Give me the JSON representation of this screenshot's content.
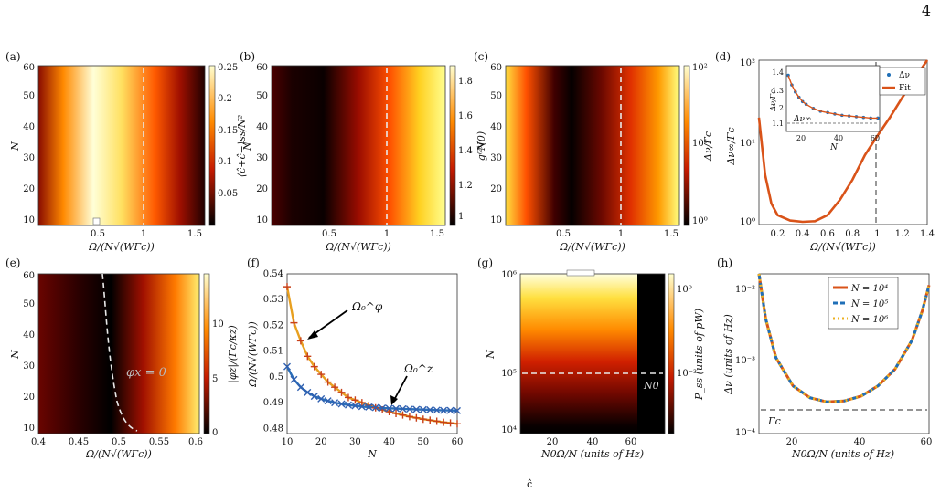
{
  "page": {
    "number": "4",
    "caption_fragment": "ĉ"
  },
  "panels": {
    "a": {
      "label": "(a)",
      "xlabel": "Ω/(N√(WΓc))",
      "ylabel": "N",
      "cbar_label": "⟨ĉ+ĉ−⟩ss/N²",
      "xticks": [
        "0.5",
        "1",
        "1.5"
      ],
      "yticks": [
        "10",
        "20",
        "30",
        "40",
        "50",
        "60"
      ],
      "cticks": [
        "0.25",
        "0.2",
        "0.15",
        "0.1",
        "0.05"
      ]
    },
    "b": {
      "label": "(b)",
      "xlabel": "Ω/(N√(WΓc))",
      "ylabel": "N",
      "cbar_label": "g⁽²⁾(0)",
      "xticks": [
        "0.5",
        "1",
        "1.5"
      ],
      "yticks": [
        "10",
        "20",
        "30",
        "40",
        "50",
        "60"
      ],
      "cticks": [
        "1.8",
        "1.6",
        "1.4",
        "1.2",
        "1"
      ]
    },
    "c": {
      "label": "(c)",
      "xlabel": "Ω/(N√(WΓc))",
      "ylabel": "N",
      "cbar_label": "Δν/Γc",
      "xticks": [
        "0.5",
        "1",
        "1.5"
      ],
      "yticks": [
        "10",
        "20",
        "30",
        "40",
        "50",
        "60"
      ],
      "cticks": [
        "10²",
        "10¹",
        "10⁰"
      ]
    },
    "d": {
      "label": "(d)",
      "xlabel": "Ω/(N√(WΓc))",
      "ylabel": "Δν∞/Γc",
      "xticks": [
        "0.2",
        "0.4",
        "0.6",
        "0.8",
        "1",
        "1.2",
        "1.4"
      ],
      "yticks": [
        "10⁰",
        "10¹",
        "10²"
      ],
      "inset": {
        "xlabel": "N",
        "ylabel": "Δν/Γc",
        "xticks": [
          "20",
          "40",
          "60"
        ],
        "yticks": [
          "1.1",
          "1.2",
          "1.3",
          "1.4"
        ],
        "annotation": "Δν∞",
        "legend": [
          "Δν",
          "Fit"
        ]
      }
    },
    "e": {
      "label": "(e)",
      "xlabel": "Ω/(N√(WΓc))",
      "ylabel": "N",
      "cbar_label": "|φz|/(Γc/κz)",
      "annotation": "φx = 0",
      "xticks": [
        "0.4",
        "0.45",
        "0.5",
        "0.55",
        "0.6"
      ],
      "yticks": [
        "10",
        "20",
        "30",
        "40",
        "50",
        "60"
      ],
      "cticks": [
        "10",
        "5",
        "0"
      ]
    },
    "f": {
      "label": "(f)",
      "xlabel": "N",
      "ylabel": "Ω/(N√(WΓc))",
      "xticks": [
        "10",
        "20",
        "30",
        "40",
        "50",
        "60"
      ],
      "yticks": [
        "0.48",
        "0.49",
        "0.5",
        "0.51",
        "0.52",
        "0.53",
        "0.54"
      ],
      "annotation1": "Ω₀^φ",
      "annotation2": "Ω₀^z"
    },
    "g": {
      "label": "(g)",
      "xlabel": "N0Ω/N (units of Hz)",
      "ylabel": "N",
      "cbar_label": "P_ss (units of pW)",
      "annotation": "N0",
      "xticks": [
        "20",
        "40",
        "60"
      ],
      "yticks": [
        "10⁴",
        "10⁵",
        "10⁶"
      ],
      "cticks": [
        "10⁰",
        "10⁻²"
      ]
    },
    "h": {
      "label": "(h)",
      "xlabel": "N0Ω/N (units of Hz)",
      "ylabel": "Δν (units of Hz)",
      "xticks": [
        "20",
        "40",
        "60"
      ],
      "yticks": [
        "10⁻²",
        "10⁻³",
        "10⁻⁴"
      ],
      "annotation": "Γc",
      "legend": [
        "N = 10⁴",
        "N = 10⁵",
        "N = 10⁶"
      ]
    }
  },
  "chart_data": [
    {
      "panel": "d",
      "type": "line",
      "ylog": true,
      "series": [
        {
          "name": "Fit",
          "x": [
            0.05,
            0.1,
            0.15,
            0.2,
            0.3,
            0.4,
            0.5,
            0.6,
            0.7,
            0.8,
            0.9,
            1.0,
            1.1,
            1.2,
            1.3,
            1.4
          ],
          "y": [
            20,
            4,
            1.8,
            1.3,
            1.12,
            1.08,
            1.1,
            1.3,
            2,
            3.5,
            7,
            12,
            20,
            35,
            60,
            100
          ]
        }
      ],
      "xlim": [
        0.05,
        1.4
      ],
      "ylim": [
        1,
        100
      ]
    },
    {
      "panel": "d-inset",
      "type": "scatter",
      "series": [
        {
          "name": "Δν",
          "x": [
            10,
            12,
            14,
            16,
            18,
            20,
            24,
            28,
            32,
            36,
            40,
            44,
            48,
            52,
            56,
            60
          ],
          "y": [
            1.45,
            1.38,
            1.33,
            1.29,
            1.26,
            1.24,
            1.21,
            1.19,
            1.18,
            1.17,
            1.16,
            1.155,
            1.15,
            1.145,
            1.14,
            1.14
          ]
        }
      ],
      "xlim": [
        10,
        60
      ],
      "ylim": [
        1.05,
        1.5
      ]
    },
    {
      "panel": "f",
      "type": "line",
      "series": [
        {
          "name": "Ω₀^φ",
          "x": [
            10,
            12,
            14,
            16,
            18,
            20,
            22,
            24,
            26,
            28,
            30,
            32,
            34,
            36,
            38,
            40,
            42,
            44,
            46,
            48,
            50,
            52,
            54,
            56,
            58,
            60
          ],
          "y": [
            0.535,
            0.521,
            0.514,
            0.508,
            0.504,
            0.501,
            0.498,
            0.496,
            0.494,
            0.492,
            0.491,
            0.49,
            0.489,
            0.488,
            0.4872,
            0.4865,
            0.4858,
            0.4852,
            0.4846,
            0.4841,
            0.4836,
            0.4832,
            0.4828,
            0.4824,
            0.4821,
            0.4818
          ]
        },
        {
          "name": "Ω₀^z",
          "x": [
            10,
            12,
            14,
            16,
            18,
            20,
            22,
            24,
            26,
            28,
            30,
            32,
            34,
            36,
            38,
            40,
            42,
            44,
            46,
            48,
            50,
            52,
            54,
            56,
            58,
            60
          ],
          "y": [
            0.504,
            0.499,
            0.496,
            0.494,
            0.4925,
            0.4915,
            0.4907,
            0.49,
            0.4895,
            0.4891,
            0.4888,
            0.4885,
            0.4883,
            0.4881,
            0.4879,
            0.4878,
            0.4877,
            0.4876,
            0.4875,
            0.4874,
            0.4873,
            0.4872,
            0.4871,
            0.487,
            0.487,
            0.4869
          ]
        }
      ],
      "xlim": [
        10,
        60
      ],
      "ylim": [
        0.478,
        0.54
      ]
    },
    {
      "panel": "h",
      "type": "line",
      "ylog": true,
      "series": [
        {
          "name": "N = 10⁴",
          "x": [
            10,
            12,
            15,
            20,
            25,
            30,
            35,
            40,
            45,
            50,
            55,
            58,
            60
          ],
          "y": [
            0.03,
            0.006,
            0.0015,
            0.00055,
            0.00036,
            0.00031,
            0.00032,
            0.00038,
            0.00055,
            0.001,
            0.0028,
            0.008,
            0.02
          ]
        }
      ],
      "xlim": [
        10,
        60
      ],
      "ylim": [
        0.0001,
        0.03
      ]
    }
  ],
  "colors": {
    "hot_dark": "#000000",
    "hot_red": "#b81d00",
    "hot_orange": "#ff7a00",
    "hot_yellow": "#fff06a",
    "fit_line": "#d95319",
    "dots": "#1f6fb7",
    "line_blue": "#2a6db8",
    "line_orange": "#e8951c"
  }
}
